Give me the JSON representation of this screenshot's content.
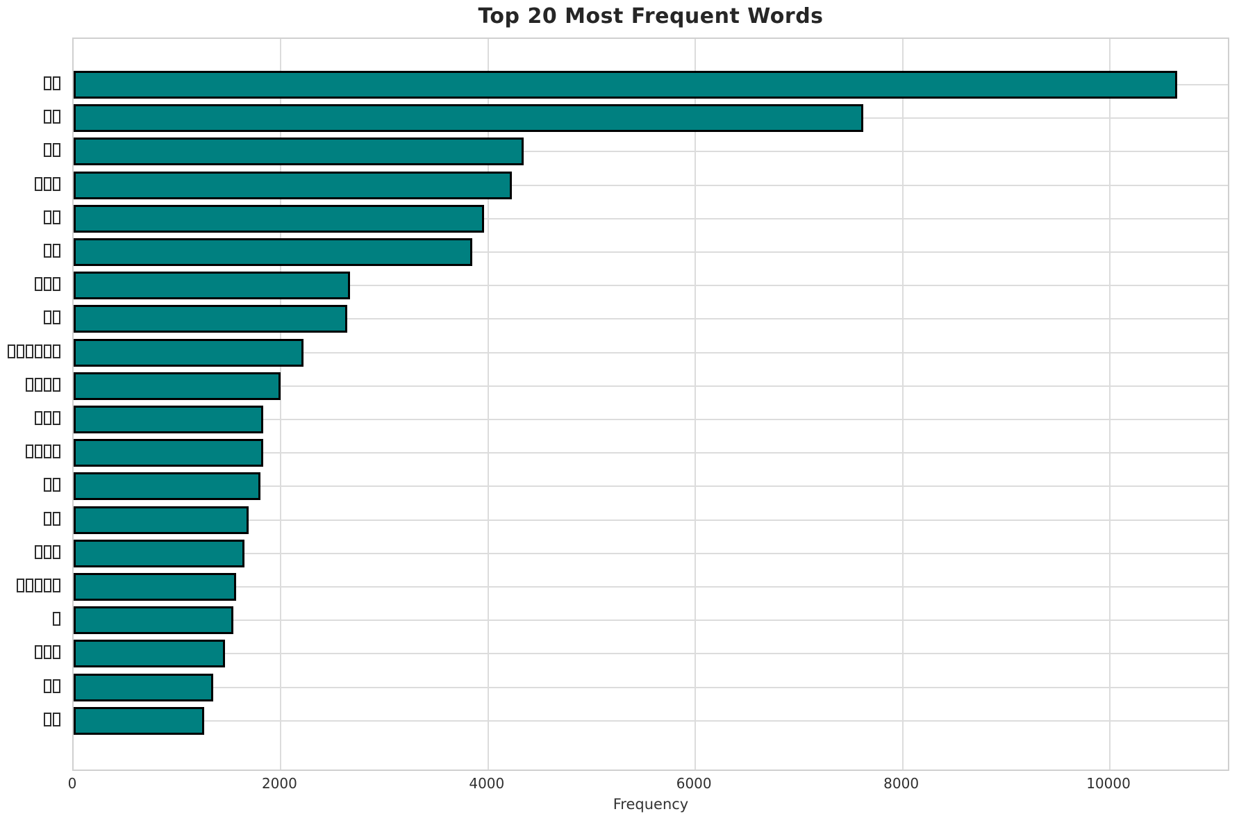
{
  "title": "Top 20 Most Frequent Words",
  "chart_data": {
    "type": "bar",
    "orientation": "horizontal",
    "title": "Top 20 Most Frequent Words",
    "xlabel": "Frequency",
    "ylabel": "",
    "categories": [
      "□□",
      "□□",
      "□□",
      "□□□",
      "□□",
      "□□",
      "□□□",
      "□□",
      "□□□□□□",
      "□□□□",
      "□□□",
      "□□□□",
      "□□",
      "□□",
      "□□□",
      "□□□□□",
      "□",
      "□□□",
      "□□",
      "□□"
    ],
    "category_box_counts": [
      2,
      2,
      2,
      3,
      2,
      2,
      3,
      2,
      6,
      4,
      3,
      4,
      2,
      2,
      3,
      5,
      1,
      3,
      2,
      2
    ],
    "categories_note": "y labels are rendered as missing-glyph tofu boxes in the screenshot",
    "values": [
      10650,
      7620,
      4340,
      4230,
      3960,
      3850,
      2670,
      2640,
      2220,
      2000,
      1830,
      1830,
      1800,
      1690,
      1650,
      1570,
      1540,
      1460,
      1350,
      1260
    ],
    "x_ticks": [
      0,
      2000,
      4000,
      6000,
      8000,
      10000
    ],
    "xlim": [
      0,
      11170
    ],
    "grid": true,
    "legend": false,
    "bar_color": "#008080",
    "bar_edge_color": "#000000",
    "grid_color": "#dcdcdc",
    "frame_color": "#d0d0d0",
    "background_color": "#ffffff",
    "title_color": "#262626",
    "tick_label_color": "#2f2f2f"
  }
}
